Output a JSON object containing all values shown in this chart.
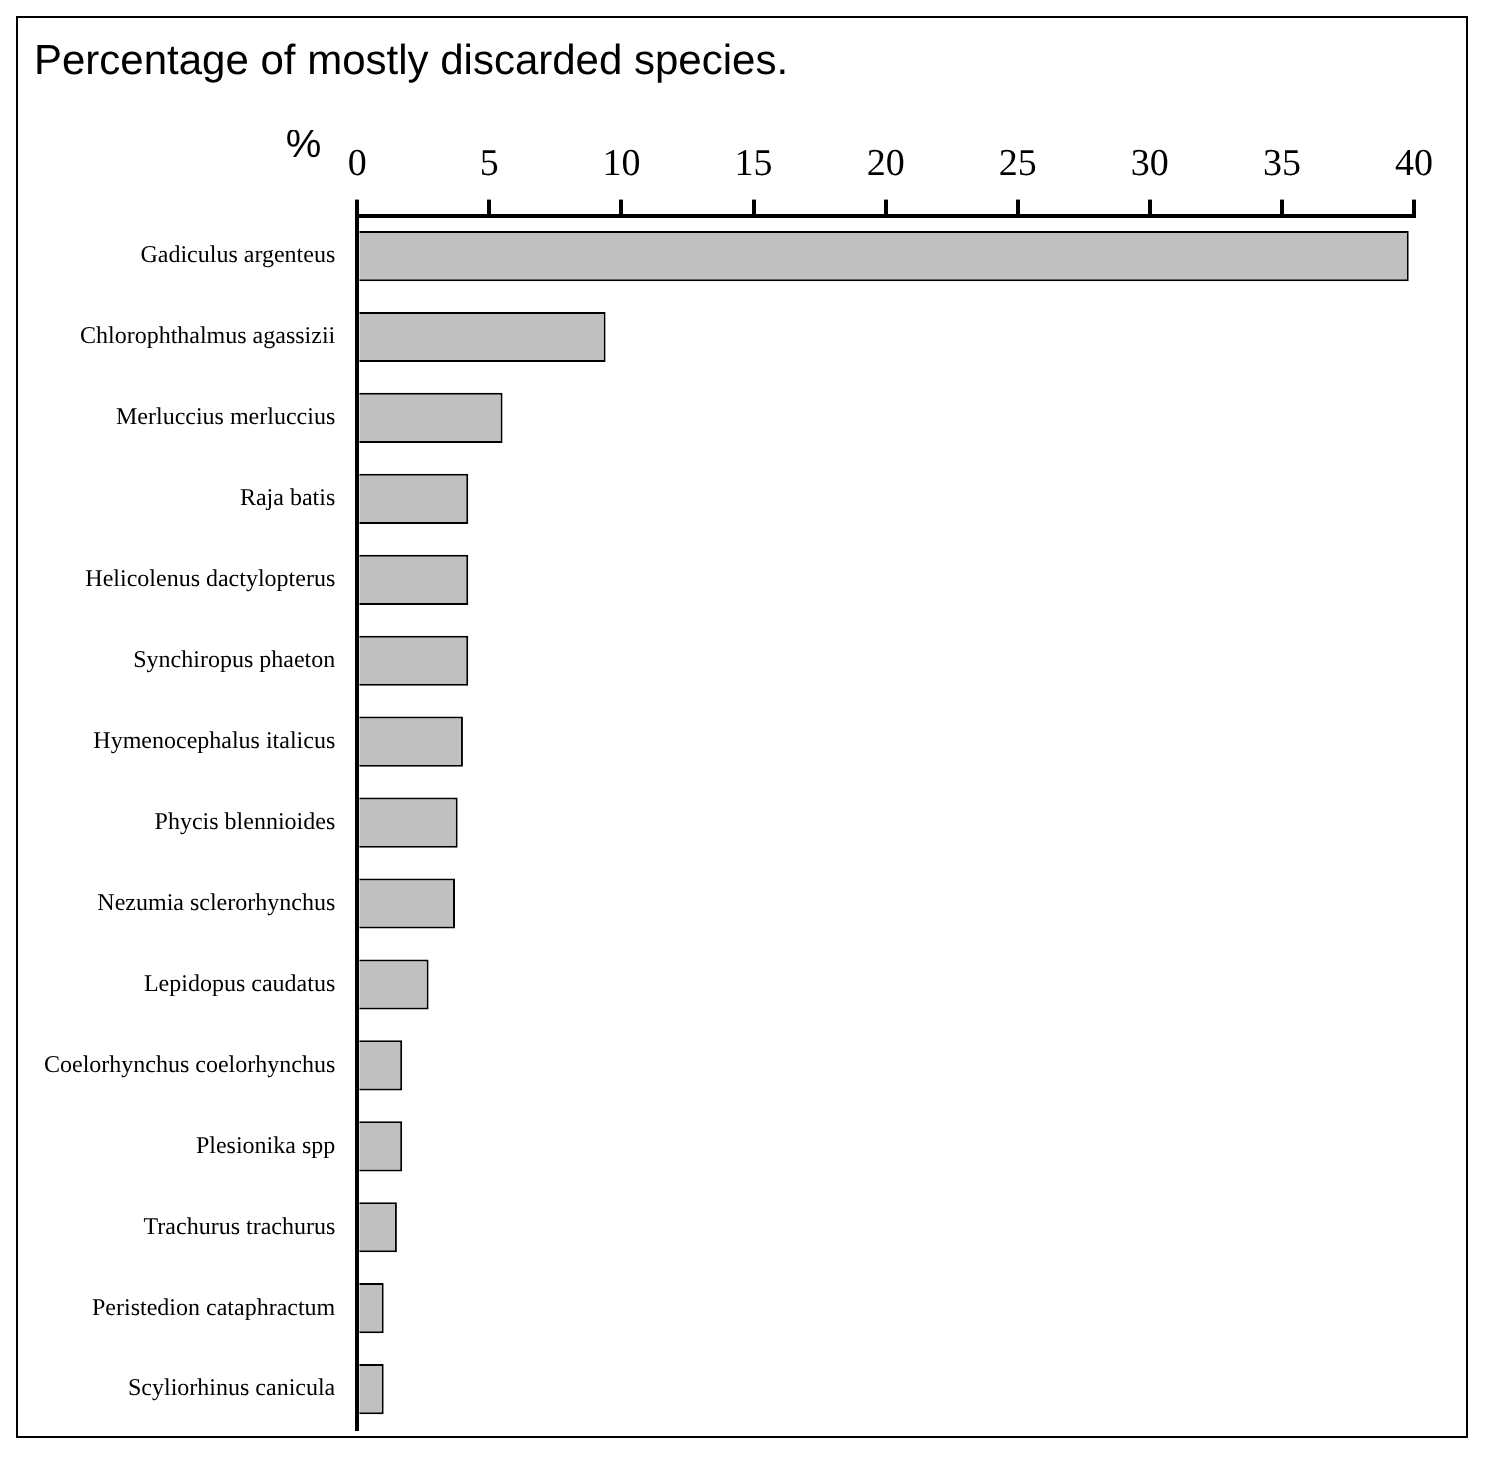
{
  "chart_data": {
    "type": "bar",
    "orientation": "horizontal",
    "title": "Percentage of mostly discarded species.",
    "xlabel": "%",
    "categories": [
      "Gadiculus argenteus",
      "Chlorophthalmus agassizii",
      "Merluccius merluccius",
      "Raja batis",
      "Helicolenus dactylopterus",
      "Synchiropus phaeton",
      "Hymenocephalus italicus",
      "Phycis blennioides",
      "Nezumia sclerorhynchus",
      "Lepidopus caudatus",
      "Coelorhynchus coelorhynchus",
      "Plesionika spp",
      "Trachurus trachurus",
      "Peristedion cataphractum",
      "Scyliorhinus canicula"
    ],
    "values": [
      39.8,
      9.4,
      5.5,
      4.2,
      4.2,
      4.2,
      4.0,
      3.8,
      3.7,
      2.7,
      1.7,
      1.7,
      1.5,
      1.0,
      1.0
    ],
    "color": "#c0c0c0",
    "xlim": [
      0,
      40
    ],
    "xticks": [
      0,
      5,
      10,
      15,
      20,
      25,
      30,
      35,
      40
    ],
    "grid": false,
    "legend": false
  }
}
